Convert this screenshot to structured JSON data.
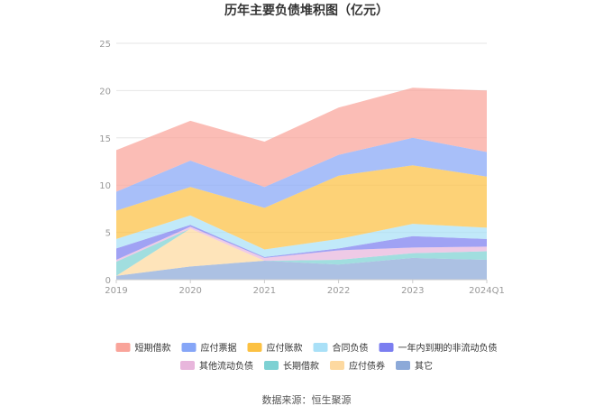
{
  "chart_data": {
    "type": "area",
    "stacked": true,
    "title": "历年主要负债堆积图（亿元）",
    "xlabel": "",
    "ylabel": "",
    "categories": [
      "2019",
      "2020",
      "2021",
      "2022",
      "2023",
      "2024Q1"
    ],
    "ylim": [
      0,
      25
    ],
    "yticks": [
      "0",
      "5",
      "10",
      "15",
      "20",
      "25"
    ],
    "grid": true,
    "legend_position": "bottom",
    "series": [
      {
        "name": "其它",
        "color": "#8ca9d8",
        "values": [
          0.4,
          1.4,
          2.0,
          1.6,
          2.3,
          2.1
        ]
      },
      {
        "name": "应付债券",
        "color": "#fdd9a0",
        "values": [
          0.0,
          4.0,
          0.0,
          0.0,
          0.0,
          0.0
        ]
      },
      {
        "name": "长期借款",
        "color": "#7dd1d3",
        "values": [
          1.5,
          0.0,
          0.0,
          0.5,
          0.5,
          0.9
        ]
      },
      {
        "name": "其他流动负债",
        "color": "#e8b6dc",
        "values": [
          0.2,
          0.2,
          0.3,
          1.0,
          0.6,
          0.5
        ]
      },
      {
        "name": "一年内到期的非流动负债",
        "color": "#7b7ef0",
        "values": [
          1.2,
          0.2,
          0.1,
          0.2,
          1.2,
          0.8
        ]
      },
      {
        "name": "合同负债",
        "color": "#a9e0f7",
        "values": [
          1.0,
          1.0,
          0.8,
          1.0,
          1.3,
          1.2
        ]
      },
      {
        "name": "应付账款",
        "color": "#fcc142",
        "values": [
          3.0,
          3.0,
          4.4,
          6.7,
          6.2,
          5.4
        ]
      },
      {
        "name": "应付票据",
        "color": "#86a6f7",
        "values": [
          2.0,
          2.8,
          2.2,
          2.2,
          2.9,
          2.6
        ]
      },
      {
        "name": "短期借款",
        "color": "#f9a49a",
        "values": [
          4.4,
          4.2,
          4.8,
          5.0,
          5.3,
          6.5
        ]
      }
    ],
    "legend_order": [
      "短期借款",
      "应付票据",
      "应付账款",
      "合同负债",
      "一年内到期的非流动负债",
      "其他流动负债",
      "长期借款",
      "应付债券",
      "其它"
    ]
  },
  "footer": {
    "source": "数据来源：恒生聚源"
  }
}
